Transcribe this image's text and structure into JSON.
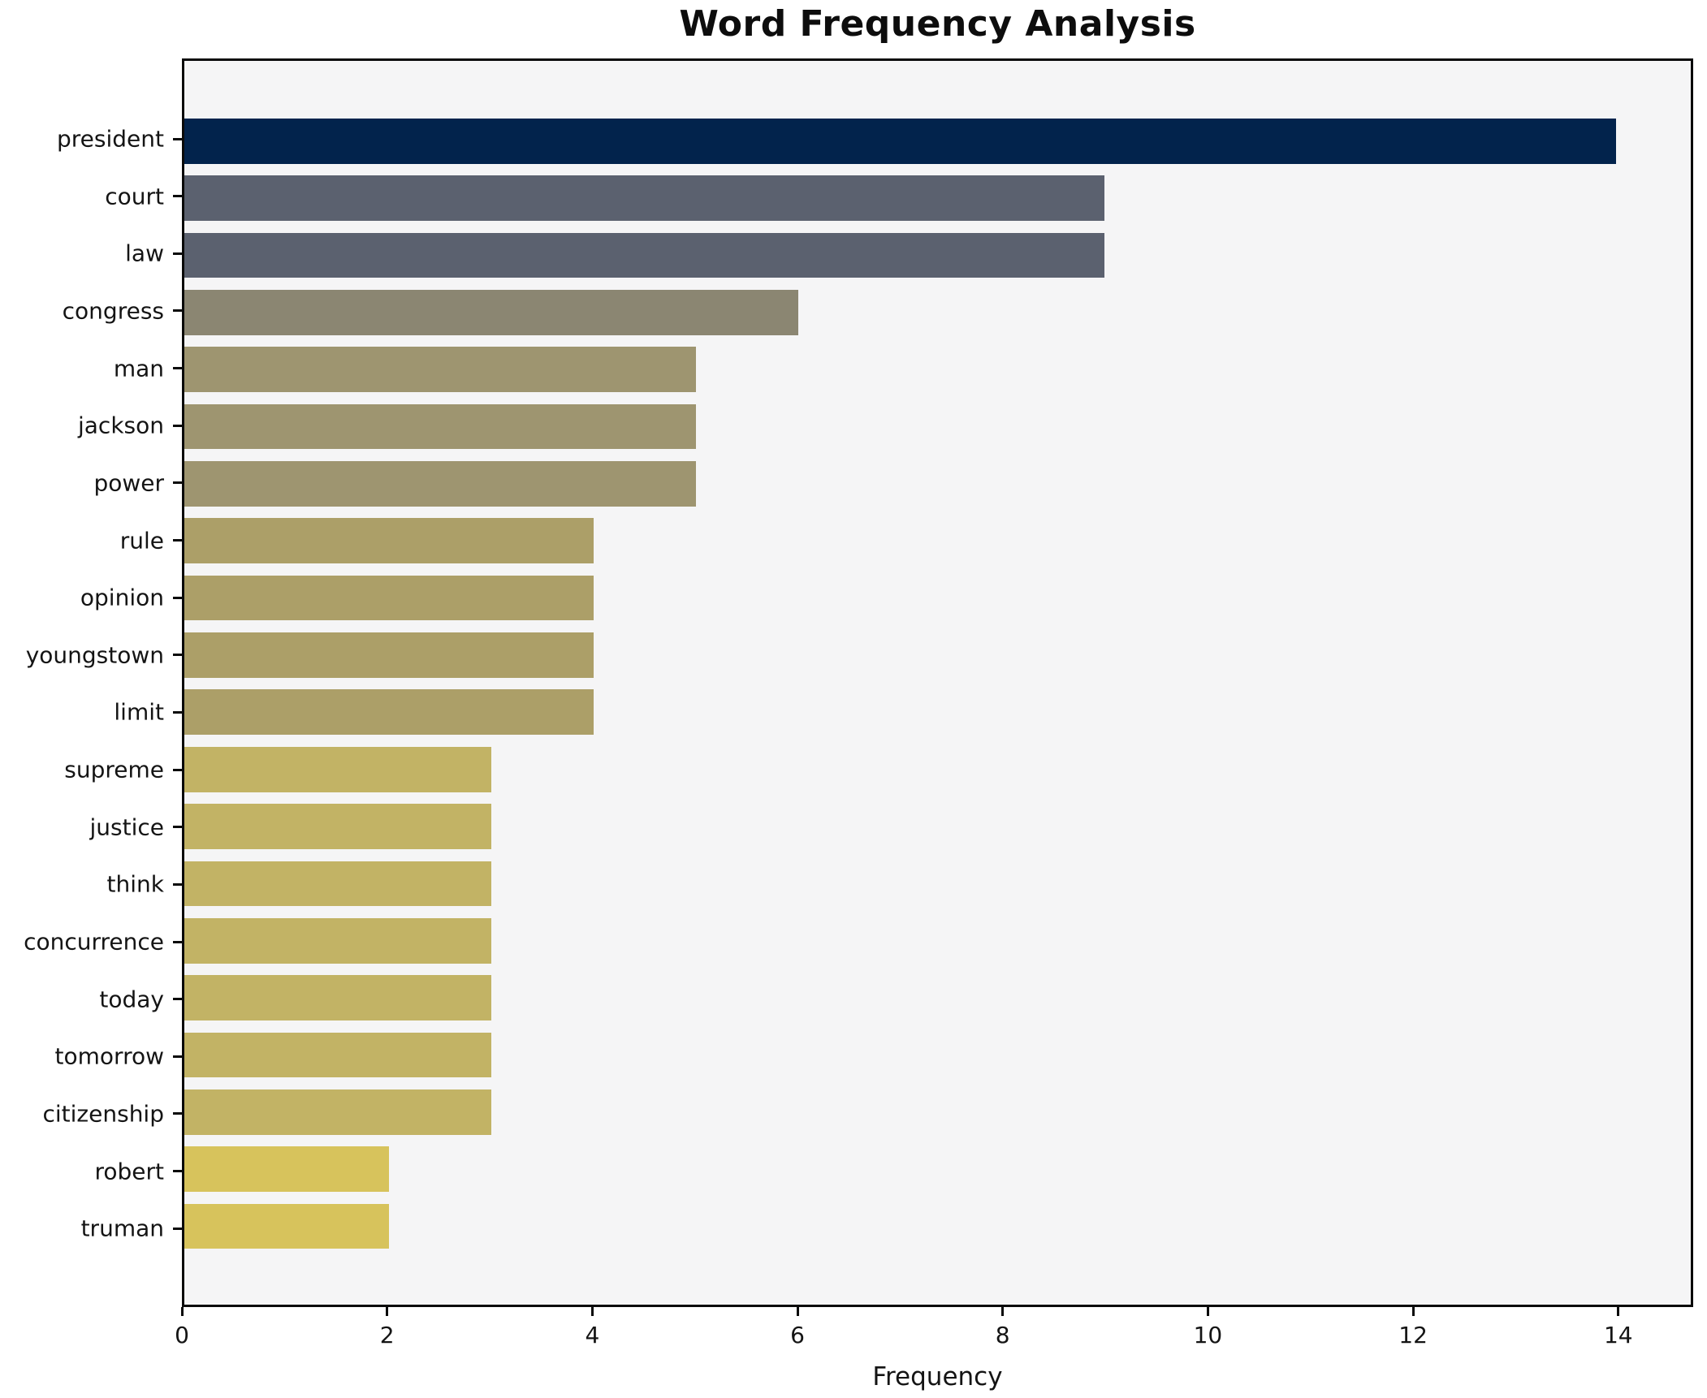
{
  "title": "Word Frequency Analysis",
  "chart_data": {
    "type": "bar",
    "orientation": "horizontal",
    "title": "Word Frequency Analysis",
    "xlabel": "Frequency",
    "ylabel": "",
    "categories": [
      "president",
      "court",
      "law",
      "congress",
      "man",
      "jackson",
      "power",
      "rule",
      "opinion",
      "youngstown",
      "limit",
      "supreme",
      "justice",
      "think",
      "concurrence",
      "today",
      "tomorrow",
      "citizenship",
      "robert",
      "truman"
    ],
    "values": [
      14,
      9,
      9,
      6,
      5,
      5,
      5,
      4,
      4,
      4,
      4,
      3,
      3,
      3,
      3,
      3,
      3,
      3,
      2,
      2
    ],
    "bar_colors": [
      "#02234c",
      "#5b616f",
      "#5b616f",
      "#8b8672",
      "#9e9570",
      "#9e9570",
      "#9e9570",
      "#ac9f68",
      "#ac9f68",
      "#ac9f68",
      "#ac9f68",
      "#c2b365",
      "#c2b365",
      "#c2b365",
      "#c2b365",
      "#c2b365",
      "#c2b365",
      "#c2b365",
      "#d7c35c",
      "#d7c35c"
    ],
    "x_ticks": [
      0,
      2,
      4,
      6,
      8,
      10,
      12,
      14
    ],
    "xlim": [
      0,
      14.73
    ],
    "grid": false,
    "legend": null,
    "plot_background": "#f5f5f6",
    "figure_background": "#ffffff",
    "spine_color": "#0a0a0a",
    "text_color": "#141414"
  }
}
